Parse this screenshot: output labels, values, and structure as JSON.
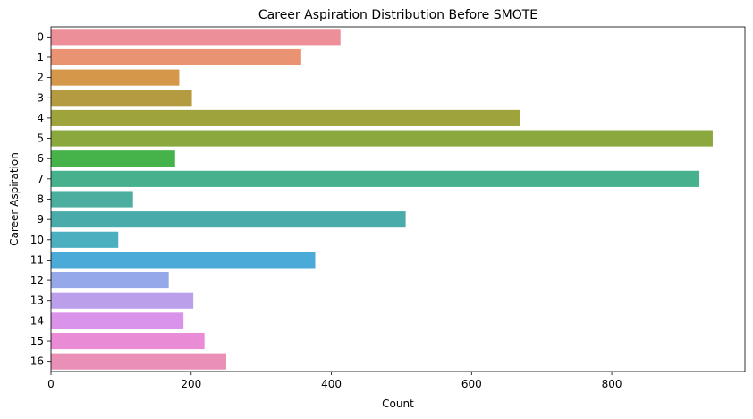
{
  "chart_data": {
    "type": "bar",
    "orientation": "horizontal",
    "title": "Career Aspiration Distribution Before SMOTE",
    "xlabel": "Count",
    "ylabel": "Career Aspiration",
    "categories": [
      "0",
      "1",
      "2",
      "3",
      "4",
      "5",
      "6",
      "7",
      "8",
      "9",
      "10",
      "11",
      "12",
      "13",
      "14",
      "15",
      "16"
    ],
    "values": [
      413,
      357,
      183,
      201,
      669,
      944,
      177,
      925,
      117,
      506,
      96,
      377,
      168,
      203,
      189,
      219,
      250
    ],
    "colors": [
      "#ec8f98",
      "#e99373",
      "#d5984a",
      "#b49b3f",
      "#9fa33c",
      "#8aa83d",
      "#46b34a",
      "#47b08d",
      "#4bae9e",
      "#49acab",
      "#4bafc0",
      "#4caad9",
      "#95a8e9",
      "#bb9feb",
      "#d993ea",
      "#e98cd5",
      "#ea90b6"
    ],
    "xlim": [
      0,
      990
    ],
    "xticks": [
      0,
      200,
      400,
      600,
      800
    ],
    "grid": false,
    "legend": "none"
  }
}
